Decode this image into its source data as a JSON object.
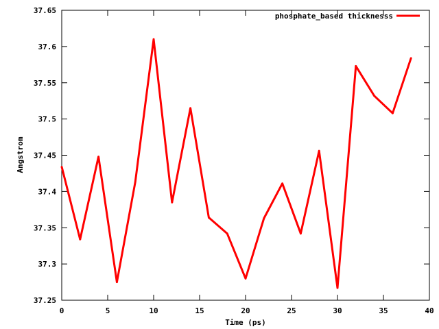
{
  "chart_data": {
    "type": "line",
    "title": "",
    "xlabel": "Time (ps)",
    "ylabel": "Angstrom",
    "xlim": [
      0,
      40
    ],
    "ylim": [
      37.25,
      37.65
    ],
    "x_ticks": [
      0,
      5,
      10,
      15,
      20,
      25,
      30,
      35,
      40
    ],
    "y_ticks": [
      37.25,
      37.3,
      37.35,
      37.4,
      37.45,
      37.5,
      37.55,
      37.6,
      37.65
    ],
    "x_tick_labels": [
      "0",
      "5",
      "10",
      "15",
      "20",
      "25",
      "30",
      "35",
      "40"
    ],
    "y_tick_labels": [
      "37.25",
      "37.3",
      "37.35",
      "37.4",
      "37.45",
      "37.5",
      "37.55",
      "37.6",
      "37.65"
    ],
    "grid": false,
    "legend_position": "top-right",
    "series": [
      {
        "name": "phosphate_based thicknesss",
        "color": "#ff0000",
        "x": [
          0,
          2,
          4,
          6,
          8,
          10,
          12,
          14,
          16,
          18,
          20,
          22,
          24,
          26,
          28,
          30,
          32,
          34,
          36,
          38
        ],
        "y": [
          37.434,
          37.334,
          37.448,
          37.275,
          37.413,
          37.61,
          37.385,
          37.515,
          37.364,
          37.342,
          37.28,
          37.363,
          37.411,
          37.342,
          37.456,
          37.267,
          37.573,
          37.532,
          37.508,
          37.584
        ]
      }
    ]
  }
}
